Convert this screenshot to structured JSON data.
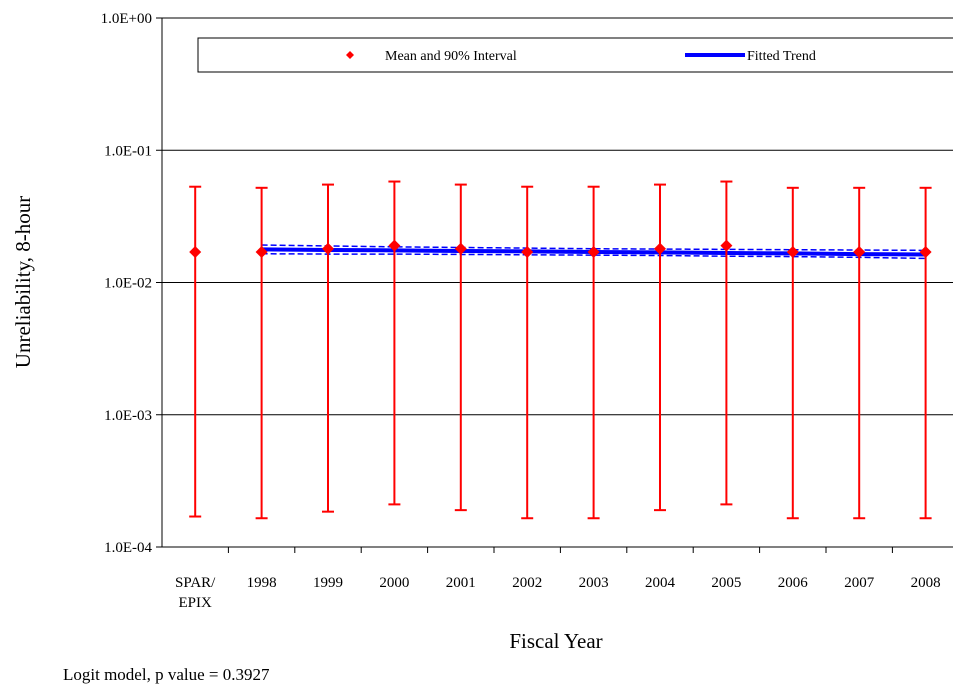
{
  "chart_data": {
    "type": "errorbar",
    "x_label": "Fiscal Year",
    "y_label": "Unreliability, 8-hour",
    "note": "Logit model, p value = 0.3927",
    "categories": [
      "SPAR/ EPIX",
      "1998",
      "1999",
      "2000",
      "2001",
      "2002",
      "2003",
      "2004",
      "2005",
      "2006",
      "2007",
      "2008"
    ],
    "log_y": true,
    "grid": true,
    "ylim": [
      0.0001,
      1
    ],
    "yticks": [
      {
        "value": 1,
        "label": "1.0E+00"
      },
      {
        "value": 0.1,
        "label": "1.0E-01"
      },
      {
        "value": 0.01,
        "label": "1.0E-02"
      },
      {
        "value": 0.001,
        "label": "1.0E-03"
      },
      {
        "value": 0.0001,
        "label": "1.0E-04"
      }
    ],
    "series": [
      {
        "name": "Mean and 90% Interval",
        "color": "#ff0000",
        "values": [
          0.017,
          0.017,
          0.018,
          0.019,
          0.018,
          0.017,
          0.017,
          0.018,
          0.019,
          0.017,
          0.017,
          0.017
        ],
        "lower": [
          0.00017,
          0.000165,
          0.000185,
          0.00021,
          0.00019,
          0.000165,
          0.000165,
          0.00019,
          0.00021,
          0.000165,
          0.000165,
          0.000165
        ],
        "upper": [
          0.053,
          0.052,
          0.055,
          0.058,
          0.055,
          0.053,
          0.053,
          0.055,
          0.058,
          0.052,
          0.052,
          0.052
        ]
      },
      {
        "name": "Fitted Trend",
        "color": "#0000ff",
        "values": [
          null,
          0.0178,
          0.0176,
          0.0175,
          0.0173,
          0.0172,
          0.017,
          0.0169,
          0.0167,
          0.0166,
          0.0164,
          0.0163
        ],
        "lower": [
          null,
          0.0165,
          0.0164,
          0.0164,
          0.0163,
          0.0162,
          0.0161,
          0.016,
          0.0158,
          0.0157,
          0.0155,
          0.0152
        ],
        "upper": [
          null,
          0.0192,
          0.0189,
          0.0186,
          0.0184,
          0.0182,
          0.018,
          0.0179,
          0.0178,
          0.0177,
          0.0176,
          0.0175
        ]
      }
    ]
  }
}
